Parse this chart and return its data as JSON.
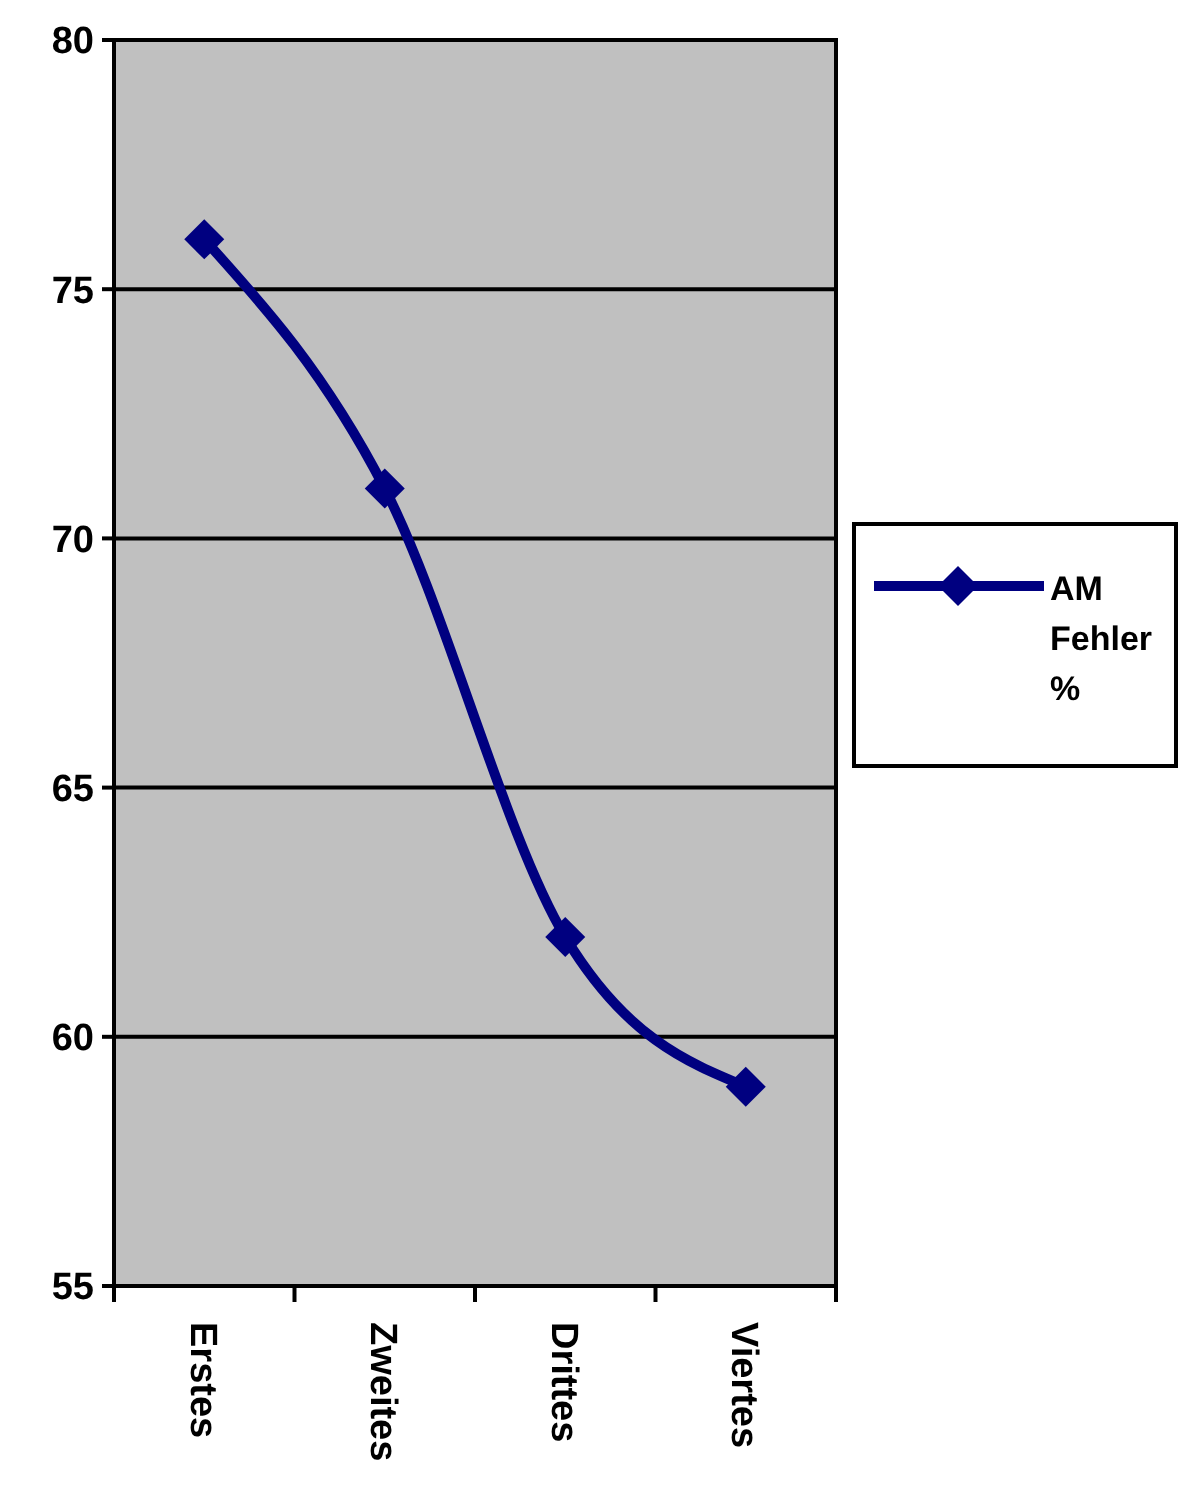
{
  "chart_data": {
    "type": "line",
    "categories": [
      "Erstes",
      "Zweites",
      "Drittes",
      "Viertes"
    ],
    "series": [
      {
        "name": "AM Fehler %",
        "color": "#000080",
        "values": [
          76,
          71,
          62,
          59
        ]
      }
    ],
    "ylim": [
      55,
      80
    ],
    "yticks": [
      55,
      60,
      65,
      70,
      75,
      80
    ],
    "grid": "y",
    "legend": "right",
    "marker": "diamond",
    "line_style": "solid"
  }
}
